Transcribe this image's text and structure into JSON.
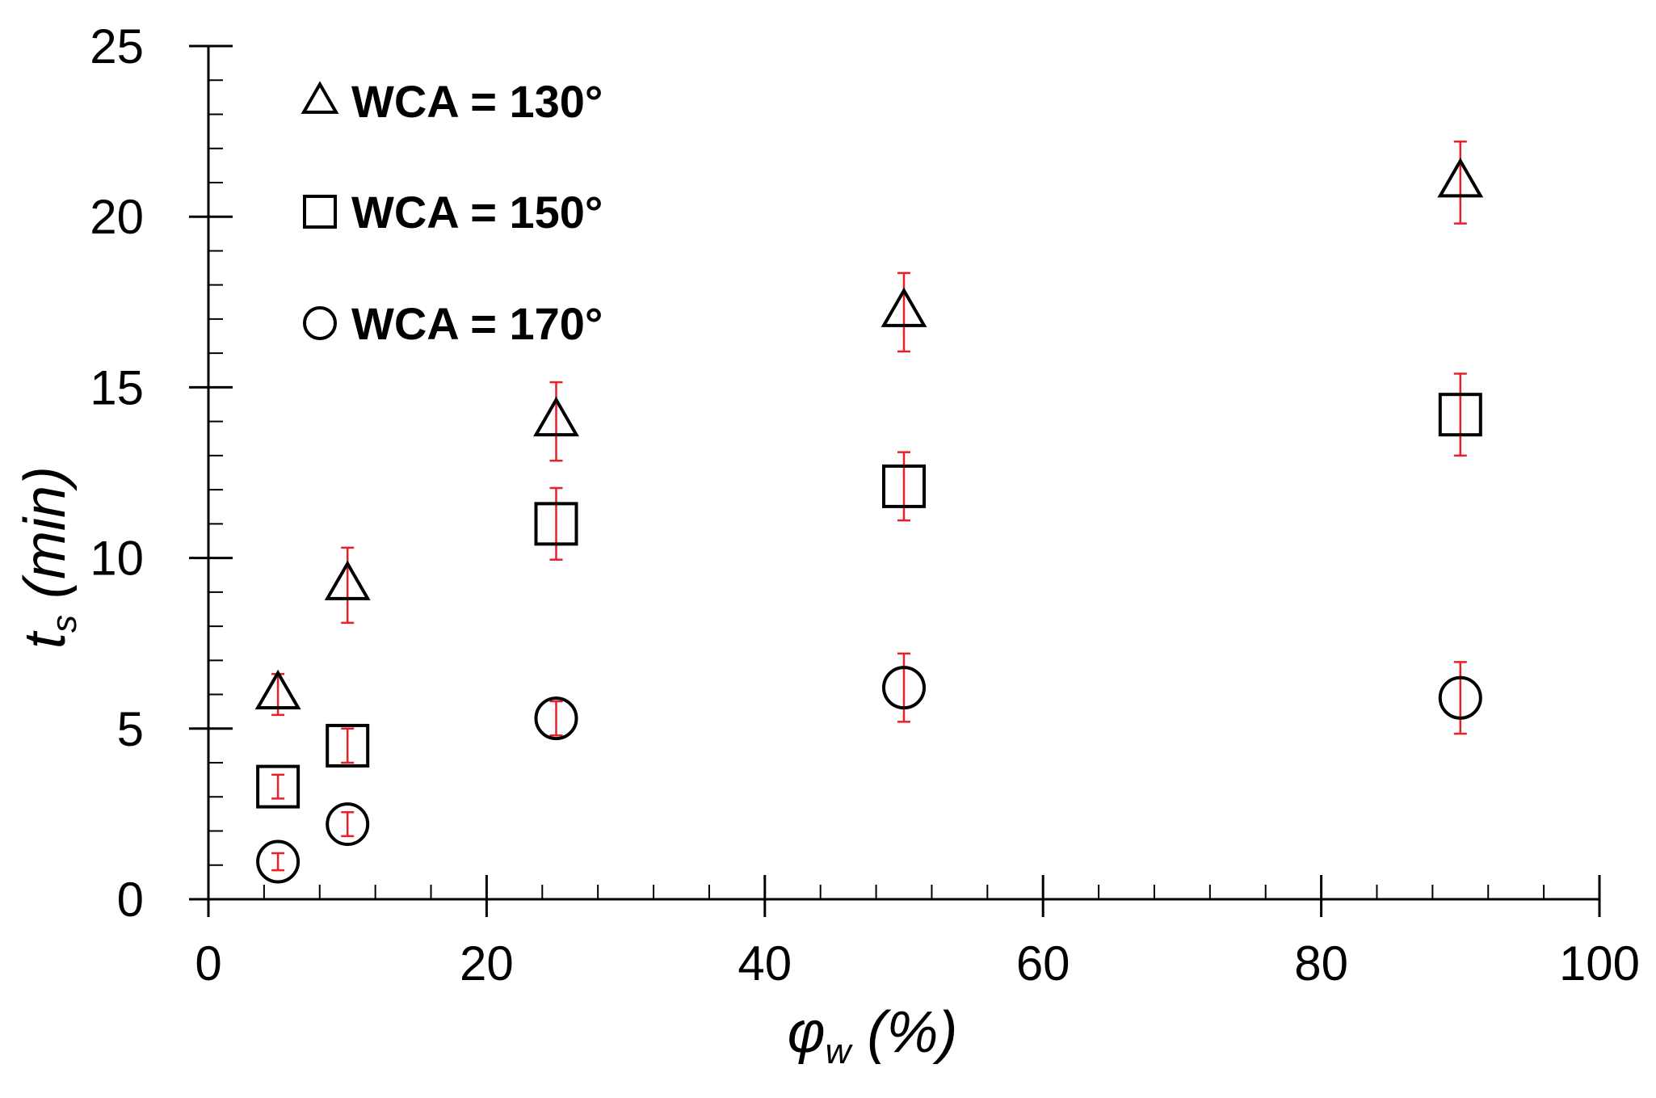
{
  "chart_data": {
    "type": "scatter",
    "xlim": [
      0,
      100
    ],
    "ylim": [
      0,
      25
    ],
    "x_ticks": [
      0,
      20,
      40,
      60,
      80,
      100
    ],
    "y_ticks": [
      0,
      5,
      10,
      15,
      20,
      25
    ],
    "x_minor_step": 4,
    "y_minor_step": 1,
    "xlabel": {
      "main": "φ",
      "sub": "w",
      "unit": " (%)"
    },
    "ylabel": {
      "main": "t",
      "sub": "s",
      "unit": " (min)"
    },
    "grid": false,
    "legend_position": "top-left",
    "error_bar_color": "#e8202a",
    "marker_color": "#000000",
    "series": [
      {
        "name": "WCA = 130°",
        "marker": "triangle",
        "points": [
          {
            "x": 5,
            "y": 6.0,
            "err": 0.6
          },
          {
            "x": 10,
            "y": 9.2,
            "err": 1.1
          },
          {
            "x": 25,
            "y": 14.0,
            "err": 1.15
          },
          {
            "x": 50,
            "y": 17.2,
            "err": 1.15
          },
          {
            "x": 90,
            "y": 21.0,
            "err": 1.2
          }
        ]
      },
      {
        "name": "WCA = 150°",
        "marker": "square",
        "points": [
          {
            "x": 5,
            "y": 3.3,
            "err": 0.35
          },
          {
            "x": 10,
            "y": 4.5,
            "err": 0.5
          },
          {
            "x": 25,
            "y": 11.0,
            "err": 1.05
          },
          {
            "x": 50,
            "y": 12.1,
            "err": 1.0
          },
          {
            "x": 90,
            "y": 14.2,
            "err": 1.2
          }
        ]
      },
      {
        "name": "WCA = 170°",
        "marker": "circle",
        "points": [
          {
            "x": 5,
            "y": 1.1,
            "err": 0.25
          },
          {
            "x": 10,
            "y": 2.2,
            "err": 0.35
          },
          {
            "x": 25,
            "y": 5.3,
            "err": 0.5
          },
          {
            "x": 50,
            "y": 6.2,
            "err": 1.0
          },
          {
            "x": 90,
            "y": 5.9,
            "err": 1.05
          }
        ]
      }
    ]
  }
}
